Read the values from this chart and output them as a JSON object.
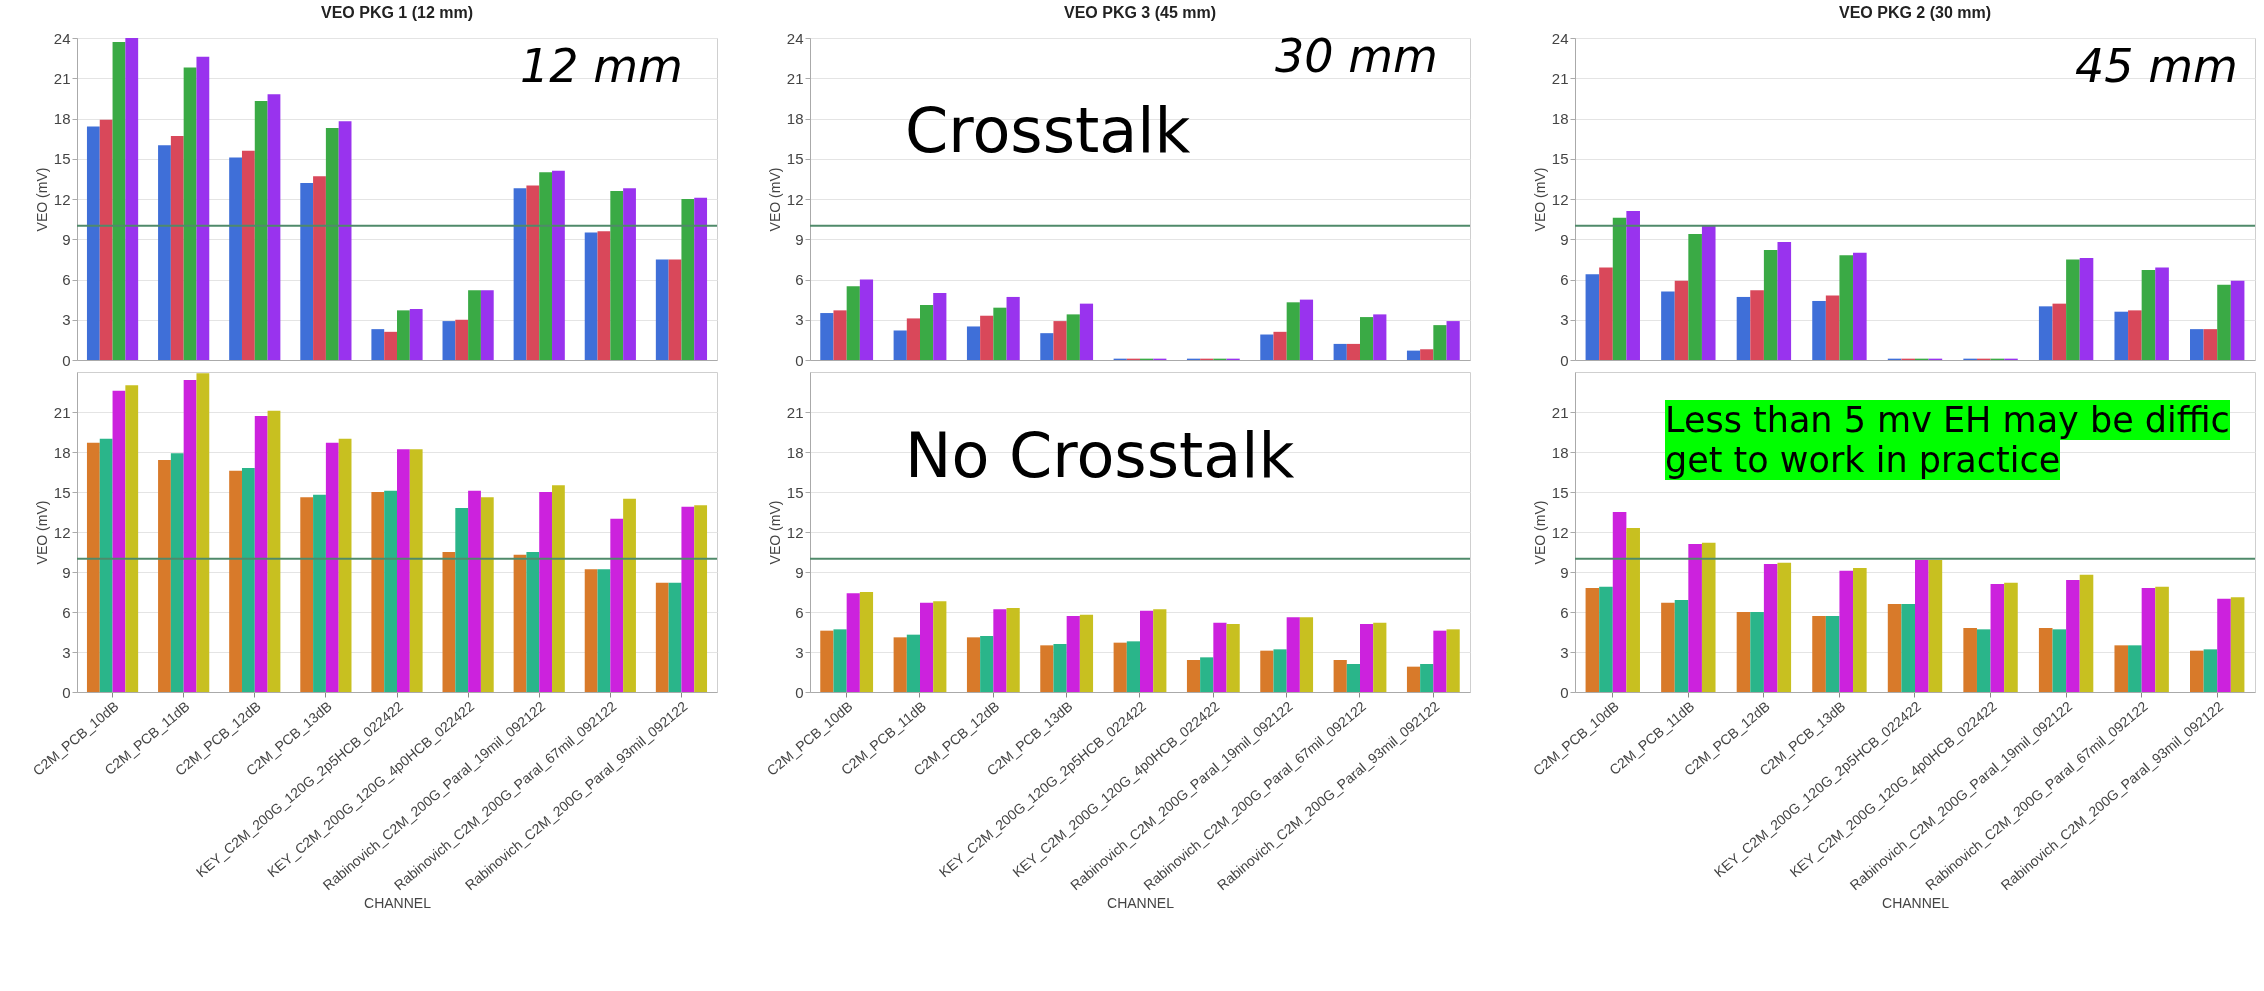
{
  "chart_data": [
    {
      "type": "bar",
      "title": "VEO PKG 1 (12 mm)",
      "ylabel": "VEO (mV)",
      "tick_labels": "y",
      "grid": "y",
      "ylim": [
        0,
        24
      ],
      "yticks": [
        0,
        3,
        6,
        9,
        12,
        15,
        18,
        21,
        24
      ],
      "categories": [
        null,
        null,
        null,
        null,
        null,
        null,
        null,
        null,
        null
      ],
      "series": [
        {
          "color": "#3f6fd8",
          "values": [
            17.4,
            16.0,
            15.1,
            13.2,
            2.3,
            2.9,
            12.8,
            9.5,
            7.5
          ]
        },
        {
          "color": "#d9485a",
          "values": [
            17.9,
            16.7,
            15.6,
            13.7,
            2.1,
            3.0,
            13.0,
            9.6,
            7.5
          ]
        },
        {
          "color": "#3aaa45",
          "values": [
            23.7,
            21.8,
            19.3,
            17.3,
            3.7,
            5.2,
            14.0,
            12.6,
            12.0
          ]
        },
        {
          "color": "#9933ee",
          "values": [
            24.0,
            22.6,
            19.8,
            17.8,
            3.8,
            5.2,
            14.1,
            12.8,
            12.1
          ]
        }
      ],
      "ref_lines": [
        {
          "axis": "y",
          "value": 10,
          "color": "#4f8a6a"
        }
      ],
      "annotations": [
        "12 mm"
      ]
    },
    {
      "type": "bar",
      "title": "VEO PKG 3 (45 mm)",
      "ylabel": "VEO (mV)",
      "tick_labels": "y",
      "grid": "y",
      "ylim": [
        0,
        24
      ],
      "yticks": [
        0,
        3,
        6,
        9,
        12,
        15,
        18,
        21,
        24
      ],
      "categories": [
        null,
        null,
        null,
        null,
        null,
        null,
        null,
        null,
        null
      ],
      "series": [
        {
          "color": "#3f6fd8",
          "values": [
            3.5,
            2.2,
            2.5,
            2.0,
            0.1,
            0.1,
            1.9,
            1.2,
            0.7
          ]
        },
        {
          "color": "#d9485a",
          "values": [
            3.7,
            3.1,
            3.3,
            2.9,
            0.1,
            0.1,
            2.1,
            1.2,
            0.8
          ]
        },
        {
          "color": "#3aaa45",
          "values": [
            5.5,
            4.1,
            3.9,
            3.4,
            0.1,
            0.1,
            4.3,
            3.2,
            2.6
          ]
        },
        {
          "color": "#9933ee",
          "values": [
            6.0,
            5.0,
            4.7,
            4.2,
            0.1,
            0.1,
            4.5,
            3.4,
            2.9
          ]
        }
      ],
      "ref_lines": [
        {
          "axis": "y",
          "value": 10,
          "color": "#4f8a6a"
        }
      ],
      "annotations": [
        "30 mm",
        "Crosstalk"
      ]
    },
    {
      "type": "bar",
      "title": "VEO PKG 2 (30 mm)",
      "ylabel": "VEO (mV)",
      "tick_labels": "y",
      "grid": "y",
      "ylim": [
        0,
        24
      ],
      "yticks": [
        0,
        3,
        6,
        9,
        12,
        15,
        18,
        21,
        24
      ],
      "categories": [
        null,
        null,
        null,
        null,
        null,
        null,
        null,
        null,
        null
      ],
      "series": [
        {
          "color": "#3f6fd8",
          "values": [
            6.4,
            5.1,
            4.7,
            4.4,
            0.1,
            0.1,
            4.0,
            3.6,
            2.3
          ]
        },
        {
          "color": "#d9485a",
          "values": [
            6.9,
            5.9,
            5.2,
            4.8,
            0.1,
            0.1,
            4.2,
            3.7,
            2.3
          ]
        },
        {
          "color": "#3aaa45",
          "values": [
            10.6,
            9.4,
            8.2,
            7.8,
            0.1,
            0.1,
            7.5,
            6.7,
            5.6
          ]
        },
        {
          "color": "#9933ee",
          "values": [
            11.1,
            10.0,
            8.8,
            8.0,
            0.1,
            0.1,
            7.6,
            6.9,
            5.9
          ]
        }
      ],
      "ref_lines": [
        {
          "axis": "y",
          "value": 10,
          "color": "#4f8a6a"
        }
      ],
      "annotations": [
        "45 mm"
      ]
    },
    {
      "type": "bar",
      "xlabel": "CHANNEL",
      "ylabel": "VEO (mV)",
      "grid": "y",
      "ylim": [
        0,
        24
      ],
      "yticks": [
        0,
        3,
        6,
        9,
        12,
        15,
        18,
        21
      ],
      "categories": [
        "C2M_PCB_10dB",
        "C2M_PCB_11dB",
        "C2M_PCB_12dB",
        "C2M_PCB_13dB",
        "KEY_C2M_200G_120G_2p5HCB_022422",
        "KEY_C2M_200G_120G_4p0HCB_022422",
        "Rabinovich_C2M_200G_Paral_19mil_092122",
        "Rabinovich_C2M_200G_Paral_67mil_092122",
        "Rabinovich_C2M_200G_Paral_93mil_092122"
      ],
      "series": [
        {
          "color": "#d87a2a",
          "values": [
            18.7,
            17.4,
            16.6,
            14.6,
            15.0,
            10.5,
            10.3,
            9.2,
            8.2
          ]
        },
        {
          "color": "#2ab58a",
          "values": [
            19.0,
            17.9,
            16.8,
            14.8,
            15.1,
            13.8,
            10.5,
            9.2,
            8.2
          ]
        },
        {
          "color": "#cc22dd",
          "values": [
            22.6,
            23.4,
            20.7,
            18.7,
            18.2,
            15.1,
            15.0,
            13.0,
            13.9
          ]
        },
        {
          "color": "#c8c020",
          "values": [
            23.0,
            23.9,
            21.1,
            19.0,
            18.2,
            14.6,
            15.5,
            14.5,
            14.0
          ]
        }
      ],
      "ref_lines": [
        {
          "axis": "y",
          "value": 10,
          "color": "#4f8a6a"
        }
      ]
    },
    {
      "type": "bar",
      "xlabel": "CHANNEL",
      "ylabel": "VEO (mV)",
      "grid": "y",
      "ylim": [
        0,
        24
      ],
      "yticks": [
        0,
        3,
        6,
        9,
        12,
        15,
        18,
        21
      ],
      "categories": [
        "C2M_PCB_10dB",
        "C2M_PCB_11dB",
        "C2M_PCB_12dB",
        "C2M_PCB_13dB",
        "KEY_C2M_200G_120G_2p5HCB_022422",
        "KEY_C2M_200G_120G_4p0HCB_022422",
        "Rabinovich_C2M_200G_Paral_19mil_092122",
        "Rabinovich_C2M_200G_Paral_67mil_092122",
        "Rabinovich_C2M_200G_Paral_93mil_092122"
      ],
      "series": [
        {
          "color": "#d87a2a",
          "values": [
            4.6,
            4.1,
            4.1,
            3.5,
            3.7,
            2.4,
            3.1,
            2.4,
            1.9
          ]
        },
        {
          "color": "#2ab58a",
          "values": [
            4.7,
            4.3,
            4.2,
            3.6,
            3.8,
            2.6,
            3.2,
            2.1,
            2.1
          ]
        },
        {
          "color": "#cc22dd",
          "values": [
            7.4,
            6.7,
            6.2,
            5.7,
            6.1,
            5.2,
            5.6,
            5.1,
            4.6
          ]
        },
        {
          "color": "#c8c020",
          "values": [
            7.5,
            6.8,
            6.3,
            5.8,
            6.2,
            5.1,
            5.6,
            5.2,
            4.7
          ]
        }
      ],
      "ref_lines": [
        {
          "axis": "y",
          "value": 10,
          "color": "#4f8a6a"
        }
      ],
      "annotations": [
        "No Crosstalk"
      ]
    },
    {
      "type": "bar",
      "xlabel": "CHANNEL",
      "ylabel": "VEO (mV)",
      "grid": "y",
      "ylim": [
        0,
        24
      ],
      "yticks": [
        0,
        3,
        6,
        9,
        12,
        15,
        18,
        21
      ],
      "categories": [
        "C2M_PCB_10dB",
        "C2M_PCB_11dB",
        "C2M_PCB_12dB",
        "C2M_PCB_13dB",
        "KEY_C2M_200G_120G_2p5HCB_022422",
        "KEY_C2M_200G_120G_4p0HCB_022422",
        "Rabinovich_C2M_200G_Paral_19mil_092122",
        "Rabinovich_C2M_200G_Paral_67mil_092122",
        "Rabinovich_C2M_200G_Paral_93mil_092122"
      ],
      "series": [
        {
          "color": "#d87a2a",
          "values": [
            7.8,
            6.7,
            6.0,
            5.7,
            6.6,
            4.8,
            4.8,
            3.5,
            3.1
          ]
        },
        {
          "color": "#2ab58a",
          "values": [
            7.9,
            6.9,
            6.0,
            5.7,
            6.6,
            4.7,
            4.7,
            3.5,
            3.2
          ]
        },
        {
          "color": "#cc22dd",
          "values": [
            13.5,
            11.1,
            9.6,
            9.1,
            9.9,
            8.1,
            8.4,
            7.8,
            7.0
          ]
        },
        {
          "color": "#c8c020",
          "values": [
            12.3,
            11.2,
            9.7,
            9.3,
            9.9,
            8.2,
            8.8,
            7.9,
            7.1
          ]
        }
      ],
      "ref_lines": [
        {
          "axis": "y",
          "value": 10,
          "color": "#4f8a6a"
        }
      ],
      "annotations": [
        "Less than 5 mv EH may be diffic\nget to work in practice"
      ]
    }
  ]
}
